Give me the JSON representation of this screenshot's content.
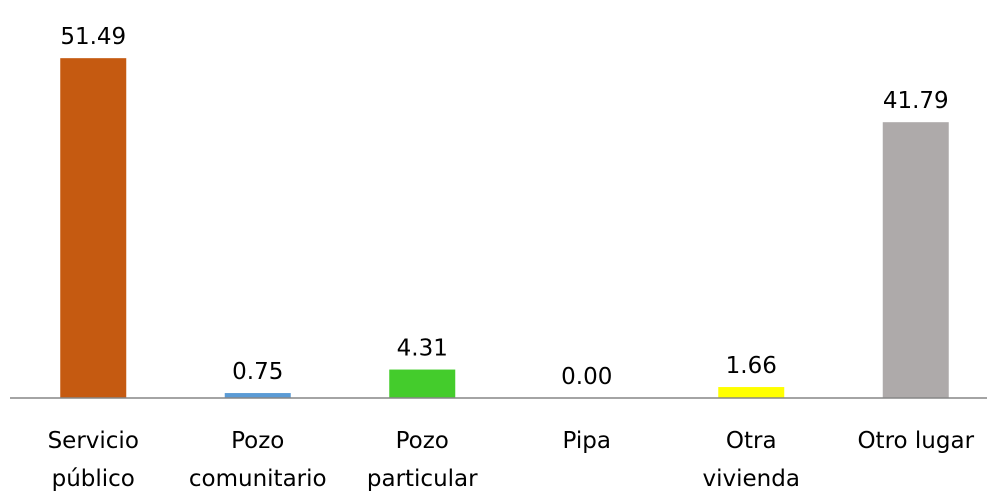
{
  "chart_data": {
    "type": "bar",
    "categories": [
      [
        "Servicio",
        "público"
      ],
      [
        "Pozo",
        "comunitario"
      ],
      [
        "Pozo",
        "particular"
      ],
      [
        "Pipa"
      ],
      [
        "Otra",
        "vivienda"
      ],
      [
        "Otro lugar"
      ]
    ],
    "values": [
      51.49,
      0.75,
      4.31,
      0,
      1.66,
      41.79
    ],
    "value_labels": [
      "51.49",
      "0.75",
      "4.31",
      "0.00",
      "1.66",
      "41.79"
    ],
    "colors": [
      "#c55a11",
      "#5b9bd5",
      "#44cc2c",
      "#8faadc",
      "#ffff00",
      "#aeaaaa"
    ],
    "ylim": [
      0,
      60
    ]
  }
}
